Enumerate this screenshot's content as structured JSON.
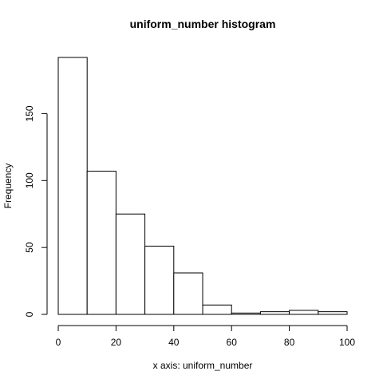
{
  "chart_data": {
    "type": "bar",
    "title": "uniform_number histogram",
    "xlabel": "x axis: uniform_number",
    "ylabel": "Frequency",
    "bins": [
      {
        "from": 0,
        "to": 10,
        "count": 192
      },
      {
        "from": 10,
        "to": 20,
        "count": 107
      },
      {
        "from": 20,
        "to": 30,
        "count": 75
      },
      {
        "from": 30,
        "to": 40,
        "count": 51
      },
      {
        "from": 40,
        "to": 50,
        "count": 31
      },
      {
        "from": 50,
        "to": 60,
        "count": 7
      },
      {
        "from": 60,
        "to": 70,
        "count": 1
      },
      {
        "from": 70,
        "to": 80,
        "count": 2
      },
      {
        "from": 80,
        "to": 90,
        "count": 3
      },
      {
        "from": 90,
        "to": 100,
        "count": 2
      }
    ],
    "xlim": [
      0,
      100
    ],
    "ylim": [
      0,
      192
    ],
    "xticks": [
      0,
      20,
      40,
      60,
      80,
      100
    ],
    "yticks": [
      0,
      50,
      100,
      150
    ],
    "grid": false,
    "bar_fill": "#ffffff",
    "bar_stroke": "#000000"
  }
}
